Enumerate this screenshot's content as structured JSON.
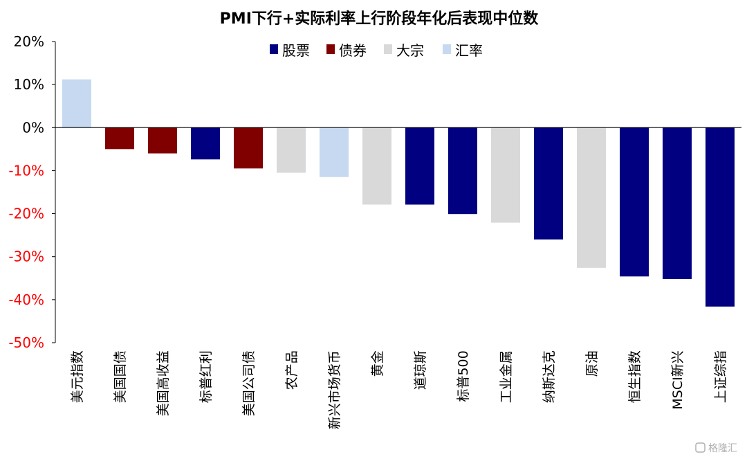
{
  "chart_data": {
    "type": "bar",
    "title": "PMI下行+实际利率上行阶段年化后表现中位数",
    "ylim": [
      -50,
      20
    ],
    "yticks": [
      20,
      10,
      0,
      -10,
      -20,
      -30,
      -40,
      -50
    ],
    "ytick_labels": [
      "20%",
      "10%",
      "0%",
      "-10%",
      "-20%",
      "-30%",
      "-40%",
      "-50%"
    ],
    "legend_position": "top-center",
    "grid": false,
    "legend": [
      {
        "name": "股票",
        "color": "#000080"
      },
      {
        "name": "债券",
        "color": "#800000"
      },
      {
        "name": "大宗",
        "color": "#d9d9d9"
      },
      {
        "name": "汇率",
        "color": "#c6d9f1"
      }
    ],
    "categories": [
      "美元指数",
      "美国国债",
      "美国高收益",
      "标普红利",
      "美国公司债",
      "农产品",
      "新兴市场货币",
      "黄金",
      "道琼斯",
      "标普500",
      "工业金属",
      "纳斯达克",
      "原油",
      "恒生指数",
      "MSCI新兴",
      "上证综指"
    ],
    "values": [
      11.2,
      -5.0,
      -6.0,
      -7.4,
      -9.5,
      -10.5,
      -11.5,
      -17.9,
      -17.9,
      -20.1,
      -22.1,
      -26.0,
      -32.6,
      -34.6,
      -35.2,
      -41.6
    ],
    "groups": [
      "汇率",
      "债券",
      "债券",
      "股票",
      "债券",
      "大宗",
      "汇率",
      "大宗",
      "股票",
      "股票",
      "大宗",
      "股票",
      "大宗",
      "股票",
      "股票",
      "股票"
    ]
  },
  "watermark": "格隆汇"
}
